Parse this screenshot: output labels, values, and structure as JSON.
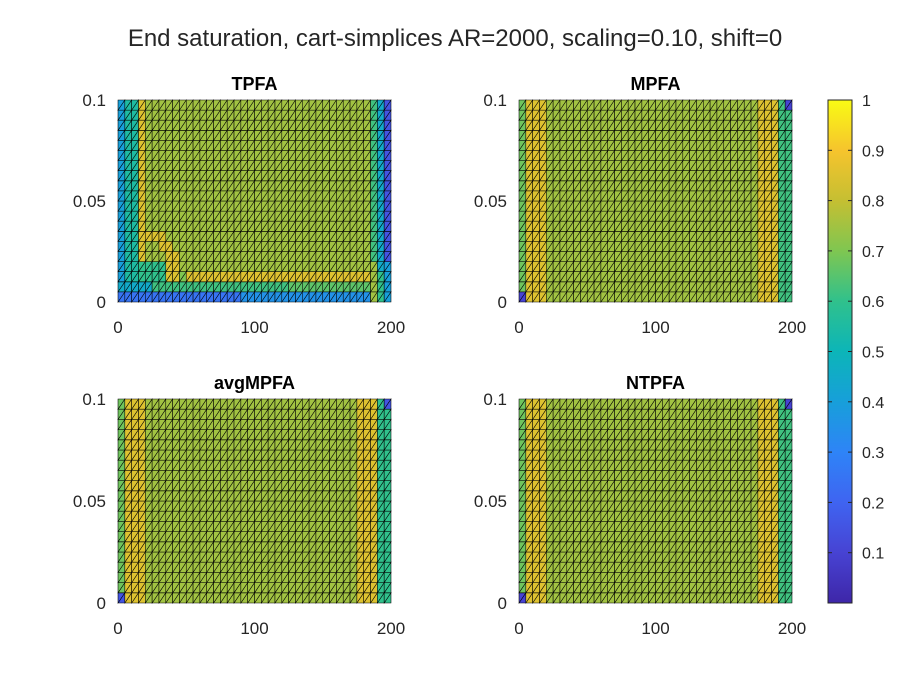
{
  "figure": {
    "title": "End saturation, cart-simplices AR=2000, scaling=0.10, shift=0"
  },
  "chart_data": [
    {
      "type": "heatmap",
      "title": "TPFA",
      "xlabel": "",
      "ylabel": "",
      "xlim": [
        0,
        200
      ],
      "ylim": [
        0,
        0.1
      ],
      "xticks": [
        0,
        100,
        200
      ],
      "xtick_labels": [
        "0",
        "100",
        "200"
      ],
      "yticks": [
        0,
        0.05,
        0.1
      ],
      "ytick_labels": [
        "0",
        "0.05",
        "0.1"
      ],
      "mesh": "cart-simplices",
      "grid": "40x20 cells, each split into 2 triangles",
      "saturation_profile": {
        "interior": 0.75,
        "left_edge": 0.4,
        "bottom_edge": 0.35,
        "bottom_left_corner": 0.25,
        "right_edge_upper": 0.15,
        "front_band": 0.85
      }
    },
    {
      "type": "heatmap",
      "title": "MPFA",
      "xlabel": "",
      "ylabel": "",
      "xlim": [
        0,
        200
      ],
      "ylim": [
        0,
        0.1
      ],
      "xticks": [
        0,
        100,
        200
      ],
      "xtick_labels": [
        "0",
        "100",
        "200"
      ],
      "yticks": [
        0,
        0.05,
        0.1
      ],
      "ytick_labels": [
        "0",
        "0.05",
        "0.1"
      ],
      "mesh": "cart-simplices",
      "saturation_profile": {
        "interior": 0.75,
        "inlet_edge": 0.68,
        "near_inlet_band": 0.85,
        "near_outlet_band": 0.85,
        "outlet_edge": 0.62,
        "corners": 0.1
      }
    },
    {
      "type": "heatmap",
      "title": "avgMPFA",
      "xlabel": "",
      "ylabel": "",
      "xlim": [
        0,
        200
      ],
      "ylim": [
        0,
        0.1
      ],
      "xticks": [
        0,
        100,
        200
      ],
      "xtick_labels": [
        "0",
        "100",
        "200"
      ],
      "yticks": [
        0,
        0.05,
        0.1
      ],
      "ytick_labels": [
        "0",
        "0.05",
        "0.1"
      ],
      "mesh": "cart-simplices",
      "saturation_profile": {
        "interior": 0.75,
        "inlet_edge": 0.68,
        "near_inlet_band": 0.85,
        "near_outlet_band": 0.85,
        "outlet_edge": 0.6,
        "corners": 0.15
      }
    },
    {
      "type": "heatmap",
      "title": "NTPFA",
      "xlabel": "",
      "ylabel": "",
      "xlim": [
        0,
        200
      ],
      "ylim": [
        0,
        0.1
      ],
      "xticks": [
        0,
        100,
        200
      ],
      "xtick_labels": [
        "0",
        "100",
        "200"
      ],
      "yticks": [
        0,
        0.05,
        0.1
      ],
      "ytick_labels": [
        "0",
        "0.05",
        "0.1"
      ],
      "mesh": "cart-simplices",
      "saturation_profile": {
        "interior": 0.75,
        "inlet_edge": 0.68,
        "near_inlet_band": 0.85,
        "near_outlet_band": 0.85,
        "outlet_edge": 0.62,
        "corners": 0.1
      }
    }
  ],
  "colorbar": {
    "colormap": "parula",
    "range": [
      0,
      1
    ],
    "ticks": [
      0.1,
      0.2,
      0.3,
      0.4,
      0.5,
      0.6,
      0.7,
      0.8,
      0.9,
      1
    ],
    "tick_labels": [
      "0.1",
      "0.2",
      "0.3",
      "0.4",
      "0.5",
      "0.6",
      "0.7",
      "0.8",
      "0.9",
      "1"
    ],
    "colors": [
      "#3e26a8",
      "#4743d3",
      "#3f64f1",
      "#2e84f7",
      "#179fda",
      "#0cb5b8",
      "#30c18c",
      "#7fc651",
      "#c5bf32",
      "#f6c42d",
      "#f9fb14"
    ]
  }
}
